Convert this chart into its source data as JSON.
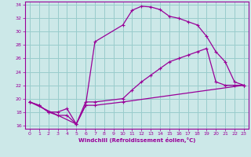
{
  "xlabel": "Windchill (Refroidissement éolien,°C)",
  "bg_color": "#cce8e8",
  "grid_color": "#99cccc",
  "line_color": "#990099",
  "xlim": [
    -0.5,
    23.5
  ],
  "ylim": [
    15.5,
    34.5
  ],
  "xticks": [
    0,
    1,
    2,
    3,
    4,
    5,
    6,
    7,
    8,
    9,
    10,
    11,
    12,
    13,
    14,
    15,
    16,
    17,
    18,
    19,
    20,
    21,
    22,
    23
  ],
  "yticks": [
    16,
    18,
    20,
    22,
    24,
    26,
    28,
    30,
    32,
    34
  ],
  "curve1_x": [
    0,
    1,
    2,
    3,
    4,
    5,
    6,
    7,
    10,
    11,
    12,
    13,
    14,
    15,
    16,
    17,
    18,
    19,
    20,
    21,
    22,
    23
  ],
  "curve1_y": [
    19.5,
    19.0,
    18.0,
    17.5,
    17.5,
    16.2,
    19.0,
    28.5,
    31.0,
    33.2,
    33.8,
    33.7,
    33.3,
    32.3,
    32.0,
    31.5,
    31.0,
    29.3,
    27.0,
    25.5,
    22.5,
    22.0
  ],
  "curve2_x": [
    0,
    5,
    6,
    7,
    10,
    11,
    12,
    13,
    14,
    15,
    16,
    17,
    18,
    19,
    20,
    21,
    22,
    23
  ],
  "curve2_y": [
    19.5,
    16.2,
    19.5,
    19.5,
    20.0,
    21.3,
    22.5,
    23.5,
    24.5,
    25.5,
    26.0,
    26.5,
    27.0,
    27.5,
    22.5,
    22.0,
    22.0,
    22.0
  ],
  "curve3_x": [
    0,
    1,
    2,
    3,
    4,
    5,
    6,
    7,
    10,
    23
  ],
  "curve3_y": [
    19.5,
    19.0,
    18.0,
    18.0,
    18.5,
    16.2,
    19.0,
    19.0,
    19.5,
    22.0
  ]
}
